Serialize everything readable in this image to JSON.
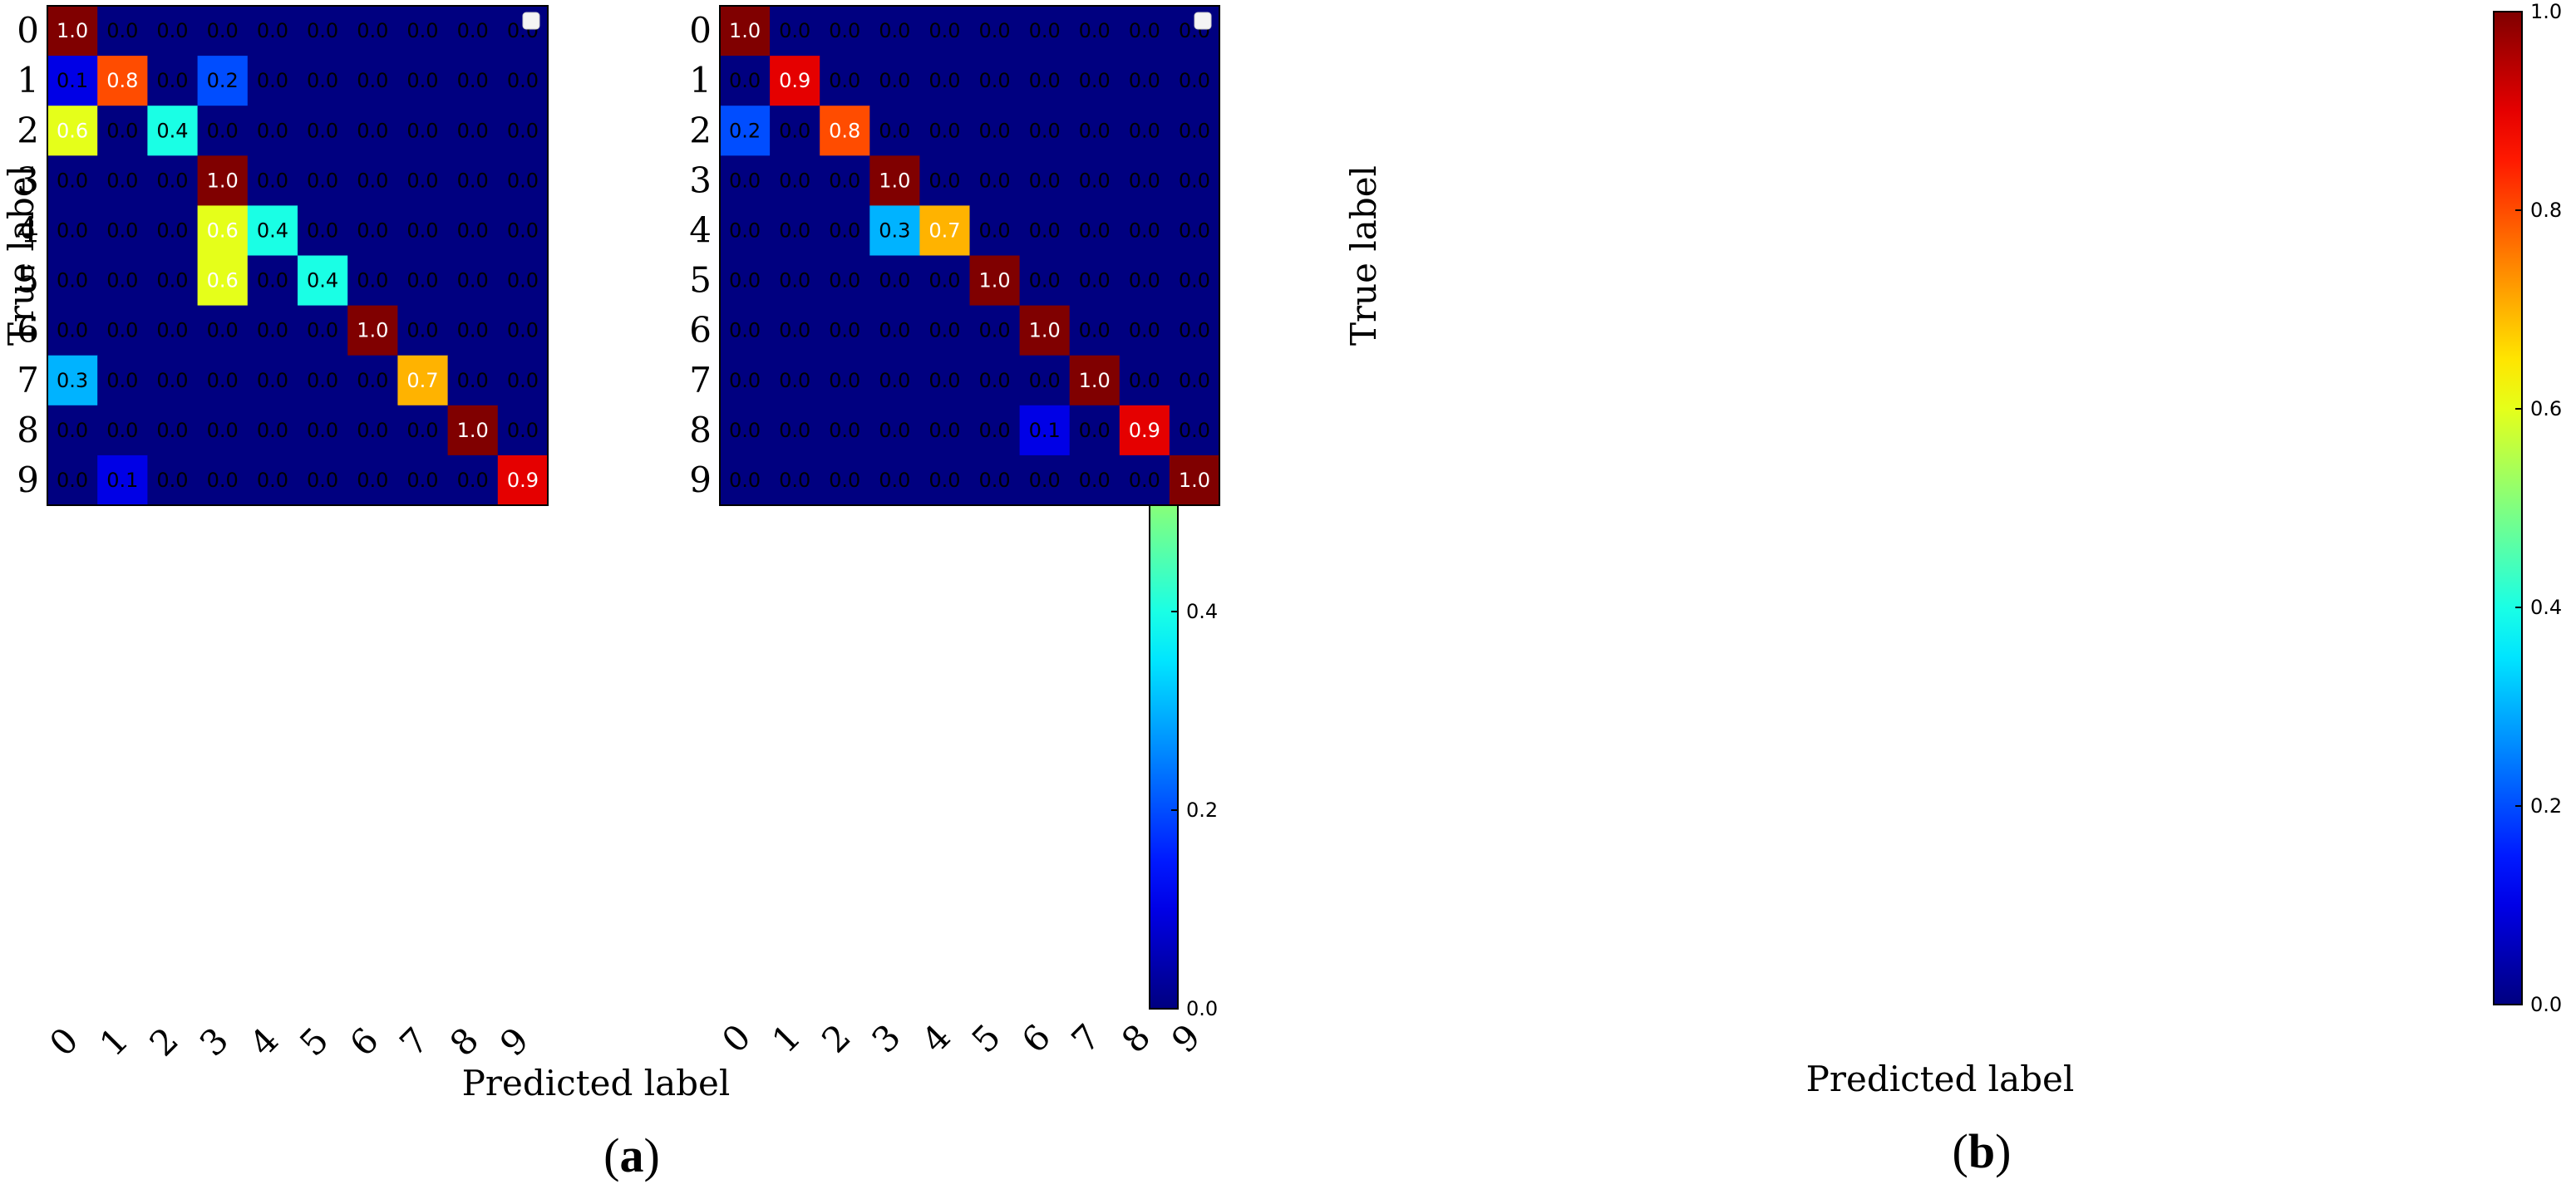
{
  "figure": {
    "background": "#ffffff",
    "text_color": "#000000"
  },
  "chart_data": [
    {
      "type": "heatmap",
      "panel_label": "(a)",
      "panel_letter": "a",
      "title": "",
      "xlabel": "Predicted label",
      "ylabel": "True label",
      "x_categories": [
        "0",
        "1",
        "2",
        "3",
        "4",
        "5",
        "6",
        "7",
        "8",
        "9"
      ],
      "y_categories": [
        "0",
        "1",
        "2",
        "3",
        "4",
        "5",
        "6",
        "7",
        "8",
        "9"
      ],
      "colormap": "jet",
      "vmin": 0.0,
      "vmax": 1.0,
      "colorbar_ticks": [
        "0.0",
        "0.2",
        "0.4",
        "0.6",
        "0.8",
        "1.0"
      ],
      "legend": "top-right",
      "values": [
        [
          1.0,
          0.0,
          0.0,
          0.0,
          0.0,
          0.0,
          0.0,
          0.0,
          0.0,
          0.0
        ],
        [
          0.1,
          0.8,
          0.0,
          0.2,
          0.0,
          0.0,
          0.0,
          0.0,
          0.0,
          0.0
        ],
        [
          0.6,
          0.0,
          0.4,
          0.0,
          0.0,
          0.0,
          0.0,
          0.0,
          0.0,
          0.0
        ],
        [
          0.0,
          0.0,
          0.0,
          1.0,
          0.0,
          0.0,
          0.0,
          0.0,
          0.0,
          0.0
        ],
        [
          0.0,
          0.0,
          0.0,
          0.6,
          0.4,
          0.0,
          0.0,
          0.0,
          0.0,
          0.0
        ],
        [
          0.0,
          0.0,
          0.0,
          0.6,
          0.0,
          0.4,
          0.0,
          0.0,
          0.0,
          0.0
        ],
        [
          0.0,
          0.0,
          0.0,
          0.0,
          0.0,
          0.0,
          1.0,
          0.0,
          0.0,
          0.0
        ],
        [
          0.3,
          0.0,
          0.0,
          0.0,
          0.0,
          0.0,
          0.0,
          0.7,
          0.0,
          0.0
        ],
        [
          0.0,
          0.0,
          0.0,
          0.0,
          0.0,
          0.0,
          0.0,
          0.0,
          1.0,
          0.0
        ],
        [
          0.0,
          0.1,
          0.0,
          0.0,
          0.0,
          0.0,
          0.0,
          0.0,
          0.0,
          0.9
        ]
      ],
      "display_values": [
        [
          "1.0",
          "0.0",
          "0.0",
          "0.0",
          "0.0",
          "0.0",
          "0.0",
          "0.0",
          "0.0",
          "0.0"
        ],
        [
          "0.1",
          "0.8",
          "0.0",
          "0.2",
          "0.0",
          "0.0",
          "0.0",
          "0.0",
          "0.0",
          "0.0"
        ],
        [
          "0.6",
          "0.0",
          "0.4",
          "0.0",
          "0.0",
          "0.0",
          "0.0",
          "0.0",
          "0.0",
          "0.0"
        ],
        [
          "0.0",
          "0.0",
          "0.0",
          "1.0",
          "0.0",
          "0.0",
          "0.0",
          "0.0",
          "0.0",
          "0.0"
        ],
        [
          "0.0",
          "0.0",
          "0.0",
          "0.6",
          "0.4",
          "0.0",
          "0.0",
          "0.0",
          "0.0",
          "0.0"
        ],
        [
          "0.0",
          "0.0",
          "0.0",
          "0.6",
          "0.0",
          "0.4",
          "0.0",
          "0.0",
          "0.0",
          "0.0"
        ],
        [
          "0.0",
          "0.0",
          "0.0",
          "0.0",
          "0.0",
          "0.0",
          "1.0",
          "0.0",
          "0.0",
          "0.0"
        ],
        [
          "0.3",
          "0.0",
          "0.0",
          "0.0",
          "0.0",
          "0.0",
          "0.0",
          "0.7",
          "0.0",
          "0.0"
        ],
        [
          "0.0",
          "0.0",
          "0.0",
          "0.0",
          "0.0",
          "0.0",
          "0.0",
          "0.0",
          "1.0",
          "0.0"
        ],
        [
          "0.0",
          "0.1",
          "0.0",
          "0.0",
          "0.0",
          "0.0",
          "0.0",
          "0.0",
          "0.0",
          "0.9"
        ]
      ]
    },
    {
      "type": "heatmap",
      "panel_label": "(b)",
      "panel_letter": "b",
      "title": "",
      "xlabel": "Predicted label",
      "ylabel": "True label",
      "x_categories": [
        "0",
        "1",
        "2",
        "3",
        "4",
        "5",
        "6",
        "7",
        "8",
        "9"
      ],
      "y_categories": [
        "0",
        "1",
        "2",
        "3",
        "4",
        "5",
        "6",
        "7",
        "8",
        "9"
      ],
      "colormap": "jet",
      "vmin": 0.0,
      "vmax": 1.0,
      "colorbar_ticks": [
        "0.0",
        "0.2",
        "0.4",
        "0.6",
        "0.8",
        "1.0"
      ],
      "legend": "top-right",
      "values": [
        [
          1.0,
          0.0,
          0.0,
          0.0,
          0.0,
          0.0,
          0.0,
          0.0,
          0.0,
          0.0
        ],
        [
          0.0,
          0.9,
          0.0,
          0.0,
          0.0,
          0.0,
          0.0,
          0.0,
          0.0,
          0.0
        ],
        [
          0.2,
          0.0,
          0.8,
          0.0,
          0.0,
          0.0,
          0.0,
          0.0,
          0.0,
          0.0
        ],
        [
          0.0,
          0.0,
          0.0,
          1.0,
          0.0,
          0.0,
          0.0,
          0.0,
          0.0,
          0.0
        ],
        [
          0.0,
          0.0,
          0.0,
          0.3,
          0.7,
          0.0,
          0.0,
          0.0,
          0.0,
          0.0
        ],
        [
          0.0,
          0.0,
          0.0,
          0.0,
          0.0,
          1.0,
          0.0,
          0.0,
          0.0,
          0.0
        ],
        [
          0.0,
          0.0,
          0.0,
          0.0,
          0.0,
          0.0,
          1.0,
          0.0,
          0.0,
          0.0
        ],
        [
          0.0,
          0.0,
          0.0,
          0.0,
          0.0,
          0.0,
          0.0,
          1.0,
          0.0,
          0.0
        ],
        [
          0.0,
          0.0,
          0.0,
          0.0,
          0.0,
          0.0,
          0.1,
          0.0,
          0.9,
          0.0
        ],
        [
          0.0,
          0.0,
          0.0,
          0.0,
          0.0,
          0.0,
          0.0,
          0.0,
          0.0,
          1.0
        ]
      ],
      "display_values": [
        [
          "1.0",
          "0.0",
          "0.0",
          "0.0",
          "0.0",
          "0.0",
          "0.0",
          "0.0",
          "0.0",
          "0.0"
        ],
        [
          "0.0",
          "0.9",
          "0.0",
          "0.0",
          "0.0",
          "0.0",
          "0.0",
          "0.0",
          "0.0",
          "0.0"
        ],
        [
          "0.2",
          "0.0",
          "0.8",
          "0.0",
          "0.0",
          "0.0",
          "0.0",
          "0.0",
          "0.0",
          "0.0"
        ],
        [
          "0.0",
          "0.0",
          "0.0",
          "1.0",
          "0.0",
          "0.0",
          "0.0",
          "0.0",
          "0.0",
          "0.0"
        ],
        [
          "0.0",
          "0.0",
          "0.0",
          "0.3",
          "0.7",
          "0.0",
          "0.0",
          "0.0",
          "0.0",
          "0.0"
        ],
        [
          "0.0",
          "0.0",
          "0.0",
          "0.0",
          "0.0",
          "1.0",
          "0.0",
          "0.0",
          "0.0",
          "0.0"
        ],
        [
          "0.0",
          "0.0",
          "0.0",
          "0.0",
          "0.0",
          "0.0",
          "1.0",
          "0.0",
          "0.0",
          "0.0"
        ],
        [
          "0.0",
          "0.0",
          "0.0",
          "0.0",
          "0.0",
          "0.0",
          "0.0",
          "1.0",
          "0.0",
          "0.0"
        ],
        [
          "0.0",
          "0.0",
          "0.0",
          "0.0",
          "0.0",
          "0.0",
          "0.1",
          "0.0",
          "0.9",
          "0.0"
        ],
        [
          "0.0",
          "0.0",
          "0.0",
          "0.0",
          "0.0",
          "0.0",
          "0.0",
          "0.0",
          "0.0",
          "1.0"
        ]
      ]
    }
  ]
}
